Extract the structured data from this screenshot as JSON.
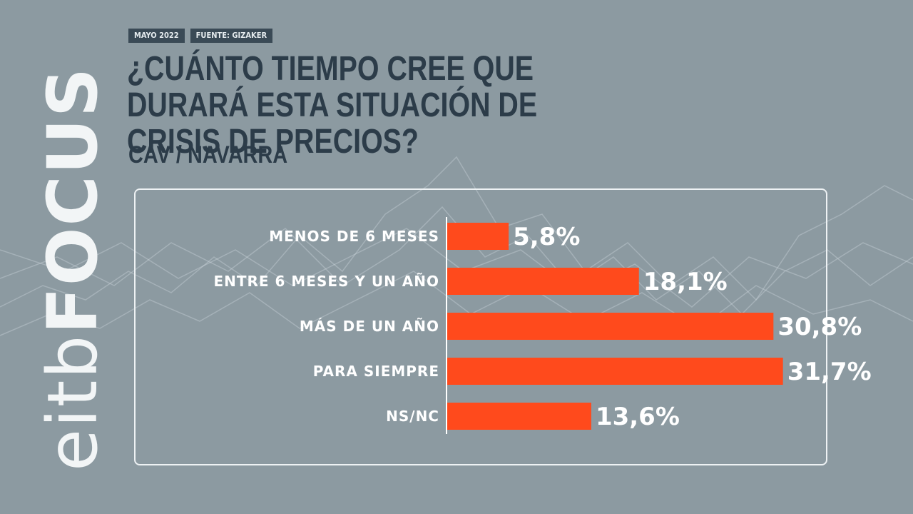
{
  "header": {
    "date_tag": "MAYO 2022",
    "source_tag": "FUENTE: GIZAKER",
    "title": "¿CUÁNTO TIEMPO CREE QUE DURARÁ ESTA SITUACIÓN DE CRISIS DE PRECIOS?",
    "subtitle": "CAV / NAVARRA"
  },
  "logo": {
    "part_a": "eitb",
    "part_b": "FOCUS"
  },
  "colors": {
    "background": "#8c9aa1",
    "bar": "#ff4a1c",
    "title": "#2c3c49",
    "label": "#ffffff"
  },
  "chart_data": {
    "type": "bar",
    "orientation": "horizontal",
    "categories": [
      "MENOS DE 6 MESES",
      "ENTRE 6 MESES Y UN AÑO",
      "MÁS DE UN AÑO",
      "PARA SIEMPRE",
      "NS/NC"
    ],
    "values": [
      5.8,
      18.1,
      30.8,
      31.7,
      13.6
    ],
    "value_labels": [
      "5,8%",
      "18,1%",
      "30,8%",
      "31,7%",
      "13,6%"
    ],
    "title": "¿CUÁNTO TIEMPO CREE QUE DURARÁ ESTA SITUACIÓN DE CRISIS DE PRECIOS?",
    "xlabel": "",
    "ylabel": "",
    "xlim": [
      0,
      33
    ],
    "grid": false,
    "legend": "none"
  }
}
